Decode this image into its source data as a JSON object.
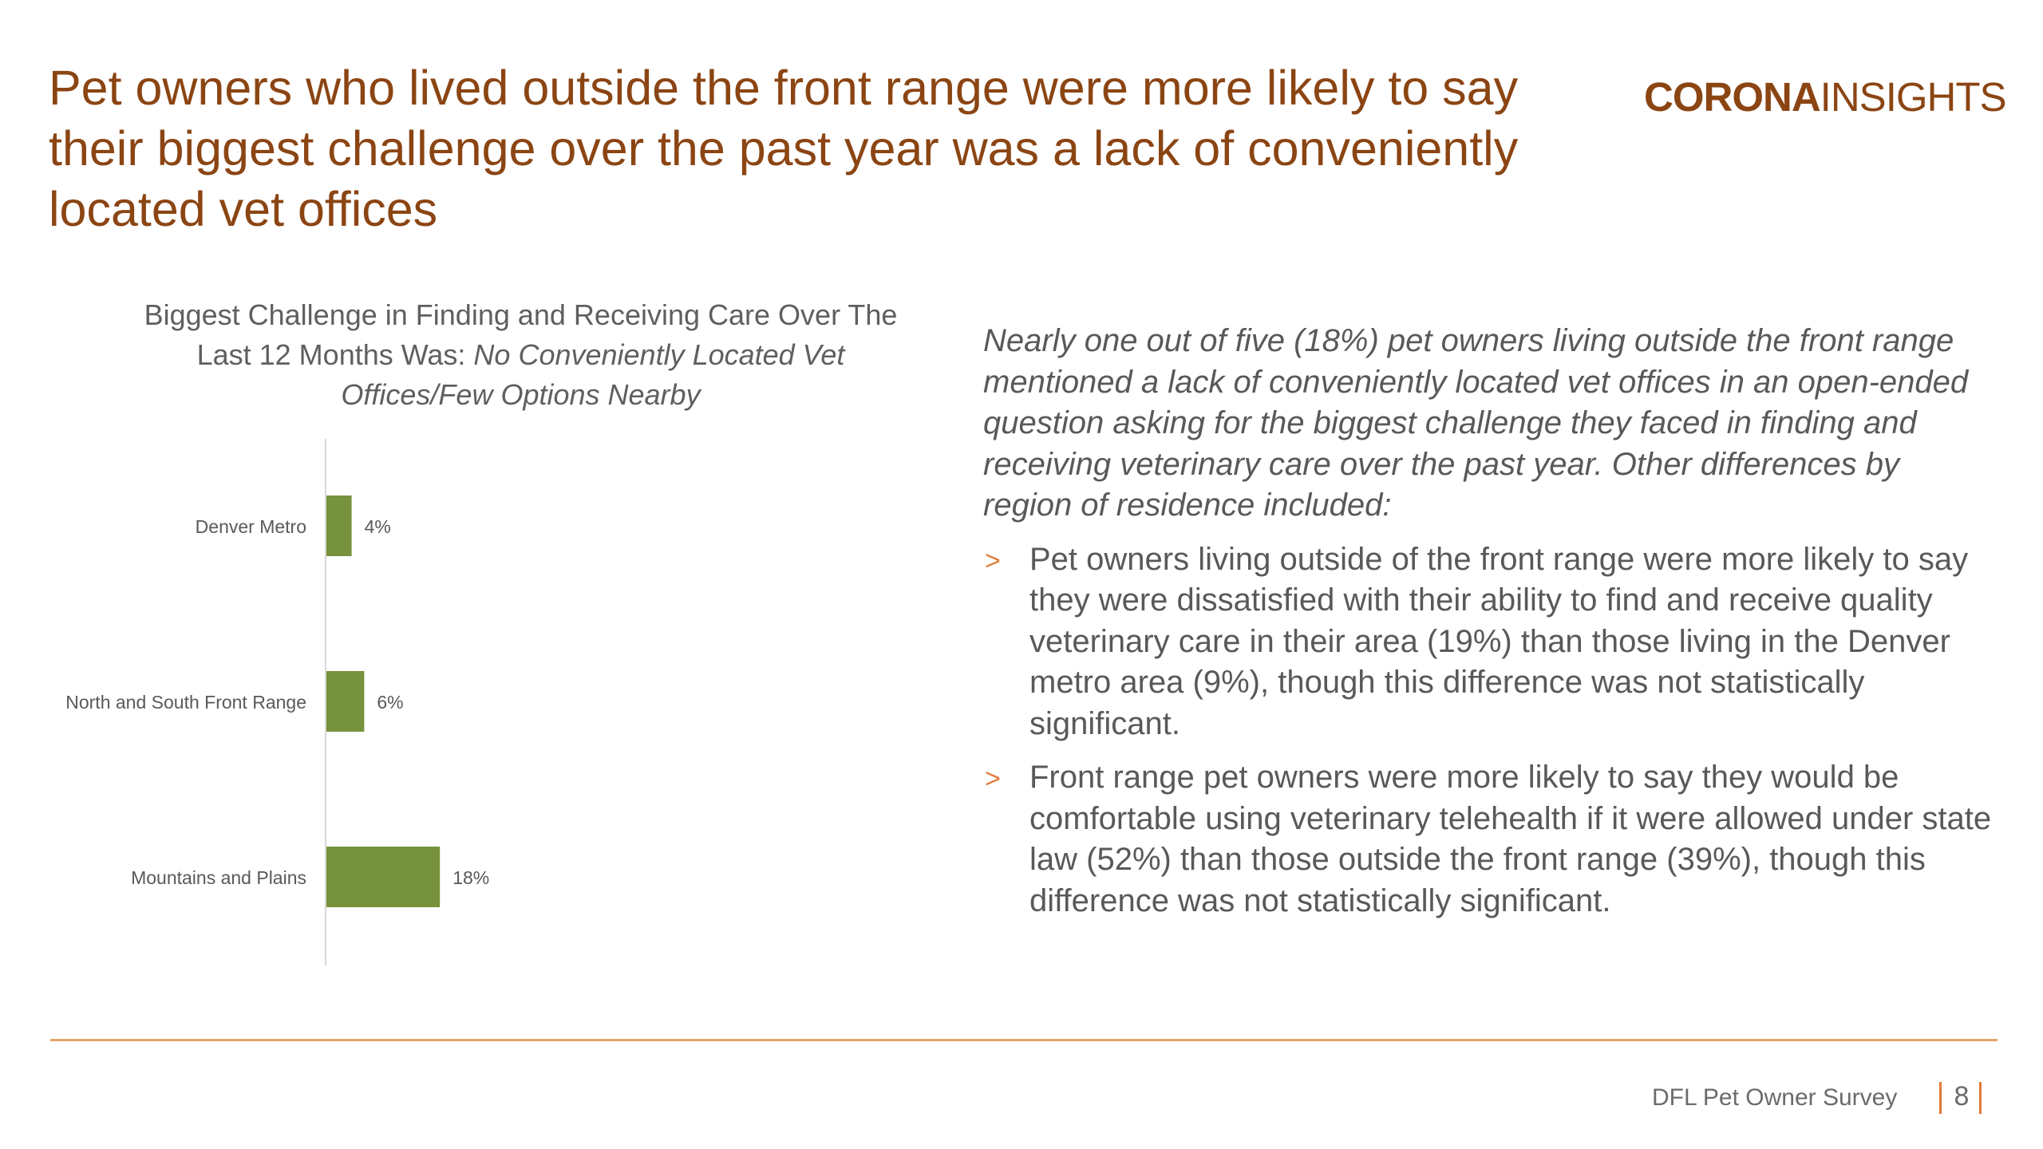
{
  "slide": {
    "title": "Pet owners who lived outside the front range were more likely to say their biggest challenge over the past year was a lack of conveniently located vet offices"
  },
  "logo": {
    "part1": "CORONA",
    "part2": "INSIGHTS"
  },
  "chart_heading": {
    "plain": "Biggest Challenge in Finding and Receiving Care Over The Last 12 Months Was: ",
    "italic": "No Conveniently Located Vet Offices/Few Options Nearby"
  },
  "chart_data": {
    "type": "bar",
    "orientation": "horizontal",
    "title": "Biggest Challenge in Finding and Receiving Care Over The Last 12 Months Was: No Conveniently Located Vet Offices/Few Options Nearby",
    "categories": [
      "Denver Metro",
      "North and South Front Range",
      "Mountains and Plains"
    ],
    "values": [
      4,
      6,
      18
    ],
    "data_labels": [
      "4%",
      "6%",
      "18%"
    ],
    "xlim": [
      0,
      100
    ],
    "bar_color": "#76923c",
    "grid": false,
    "legend": "none"
  },
  "body": {
    "intro": "Nearly one out of five (18%) pet owners living outside the front range mentioned a lack of conveniently located vet offices in an open-ended question asking for the biggest challenge they faced in finding and receiving veterinary care over the past year. Other differences by region of residence included:",
    "bullet_marker": ">",
    "bullets": [
      "Pet owners living outside of the front range were more likely to say they were dissatisfied with their ability to find and receive quality veterinary care in their area (19%) than those living in the Denver metro area (9%), though this difference was not statistically significant.",
      "Front range pet owners were more likely to say they would be comfortable using veterinary telehealth if it were allowed under state law (52%) than those outside the front range (39%), though this difference was not statistically significant."
    ]
  },
  "footer": {
    "label": "DFL Pet Owner Survey",
    "page": "8"
  },
  "colors": {
    "title": "#8B4513",
    "accent": "#e07b39",
    "bar": "#76923c",
    "rule": "#e2a56a"
  }
}
